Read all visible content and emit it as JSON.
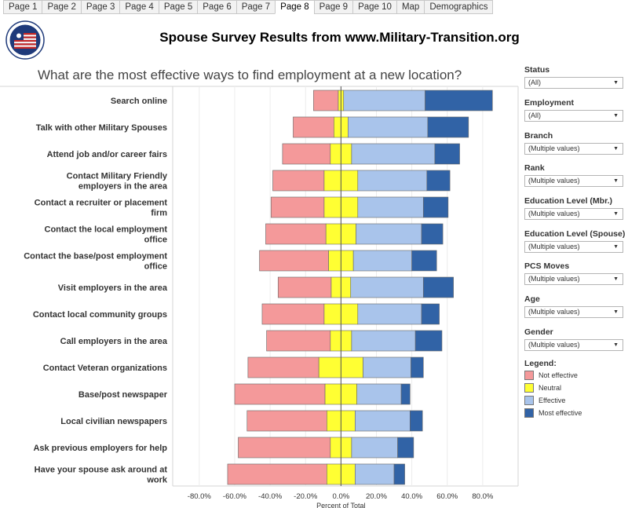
{
  "tabs": [
    {
      "label": "Page 1",
      "active": false
    },
    {
      "label": "Page 2",
      "active": false
    },
    {
      "label": "Page 3",
      "active": false
    },
    {
      "label": "Page 4",
      "active": false
    },
    {
      "label": "Page 5",
      "active": false
    },
    {
      "label": "Page 6",
      "active": false
    },
    {
      "label": "Page 7",
      "active": false
    },
    {
      "label": "Page 8",
      "active": true
    },
    {
      "label": "Page 9",
      "active": false
    },
    {
      "label": "Page 10",
      "active": false
    },
    {
      "label": "Map",
      "active": false
    },
    {
      "label": "Demographics",
      "active": false
    }
  ],
  "header": {
    "title": "Spouse Survey Results from www.Military-Transition.org",
    "question": "What are the most effective ways to find employment at a new location?"
  },
  "filters": [
    {
      "label": "Status",
      "value": "(All)"
    },
    {
      "label": "Employment",
      "value": "(All)"
    },
    {
      "label": "Branch",
      "value": "(Multiple values)"
    },
    {
      "label": "Rank",
      "value": "(Multiple values)"
    },
    {
      "label": "Education Level (Mbr.)",
      "value": "(Multiple values)"
    },
    {
      "label": "Education Level (Spouse)",
      "value": "(Multiple values)"
    },
    {
      "label": "PCS Moves",
      "value": "(Multiple values)"
    },
    {
      "label": "Age",
      "value": "(Multiple values)"
    },
    {
      "label": "Gender",
      "value": "(Multiple values)"
    }
  ],
  "legend": {
    "title": "Legend:",
    "items": [
      {
        "label": "Not effective",
        "color": "#f4999a"
      },
      {
        "label": "Neutral",
        "color": "#ffff33"
      },
      {
        "label": "Effective",
        "color": "#a9c4eb"
      },
      {
        "label": "Most effective",
        "color": "#3163a6"
      }
    ]
  },
  "chart_data": {
    "type": "bar",
    "subtype": "diverging-stacked-horizontal",
    "xlabel": "Percent of Total",
    "xlim": [
      -95,
      100
    ],
    "x_ticks": [
      -80,
      -60,
      -40,
      -20,
      0,
      20,
      40,
      60,
      80
    ],
    "x_tick_labels": [
      "-80.0%",
      "-60.0%",
      "-40.0%",
      "-20.0%",
      "0.0%",
      "20.0%",
      "40.0%",
      "60.0%",
      "80.0%"
    ],
    "grid": true,
    "categories": [
      "Search online",
      "Talk with other Military Spouses",
      "Attend job and/or career fairs",
      "Contact Military Friendly employers in the area",
      "Contact a recruiter or placement firm",
      "Contact the local employment office",
      "Contact the base/post employment office",
      "Visit employers in the area",
      "Contact local community groups",
      "Call employers in the area",
      "Contact Veteran organizations",
      "Base/post newspaper",
      "Local civilian newspapers",
      "Ask previous employers for help",
      "Have your spouse ask around at work"
    ],
    "series": [
      {
        "name": "Not effective",
        "color": "#f4999a",
        "values": [
          14,
          23,
          27,
          29,
          30,
          34,
          39,
          30,
          35,
          36,
          40,
          51,
          45,
          52,
          56
        ]
      },
      {
        "name": "Neutral",
        "color": "#ffff33",
        "values": [
          3,
          8,
          12,
          19,
          19,
          17,
          14,
          11,
          19,
          12,
          25,
          18,
          16,
          12,
          16
        ]
      },
      {
        "name": "Effective",
        "color": "#a9c4eb",
        "values": [
          46,
          45,
          47,
          39,
          37,
          37,
          33,
          41,
          36,
          36,
          27,
          25,
          31,
          26,
          22
        ]
      },
      {
        "name": "Most effective",
        "color": "#3163a6",
        "values": [
          38,
          23,
          14,
          13,
          14,
          12,
          14,
          17,
          10,
          15,
          7,
          5,
          7,
          9,
          6
        ]
      }
    ]
  }
}
